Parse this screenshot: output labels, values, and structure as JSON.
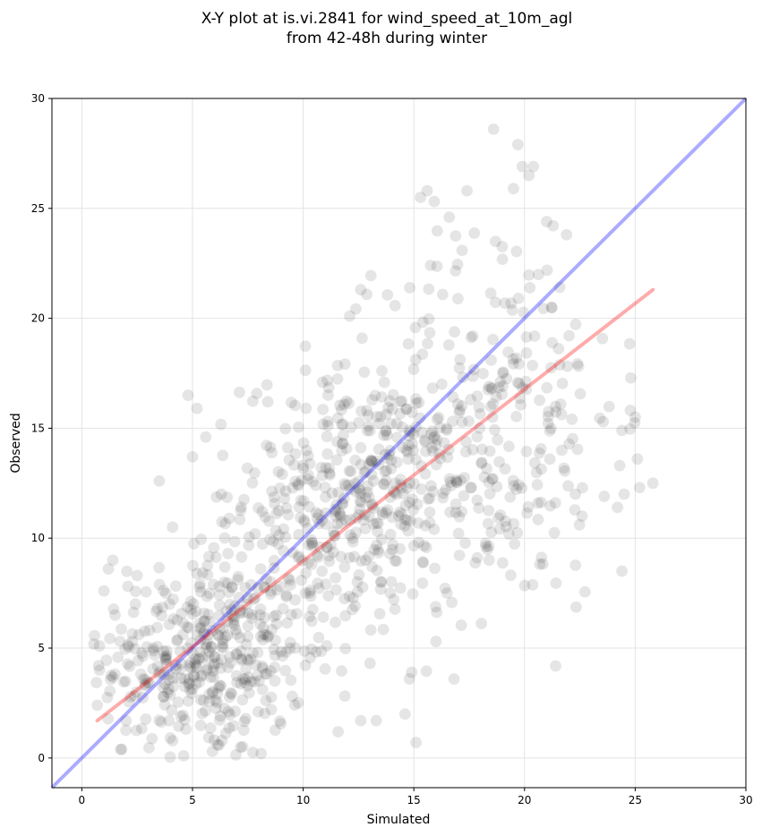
{
  "chart_data": {
    "type": "scatter",
    "title_line1": "X-Y plot at is.vi.2841 for wind_speed_at_10m_agl",
    "title_line2": "from 42-48h during winter",
    "xlabel": "Simulated",
    "ylabel": "Observed",
    "xlim": [
      -1.35,
      30
    ],
    "ylim": [
      -1.35,
      30
    ],
    "xticks": [
      "0",
      "5",
      "10",
      "15",
      "20",
      "25",
      "30"
    ],
    "yticks": [
      "0",
      "5",
      "10",
      "15",
      "20",
      "25",
      "30"
    ],
    "grid": true,
    "point_color": "#000000",
    "point_alpha": 0.1,
    "identity_line": {
      "color": "#0000ff",
      "from": [
        -1.35,
        -1.35
      ],
      "to": [
        30,
        30
      ]
    },
    "regression_line": {
      "color": "#ff0000",
      "from": [
        0.7,
        1.7
      ],
      "to": [
        25.8,
        21.3
      ]
    },
    "point_cloud": {
      "count": 1100,
      "clusters": [
        {
          "cx": 5.5,
          "cy": 4.5,
          "sx": 2.3,
          "sy": 2.3,
          "n": 380
        },
        {
          "cx": 13.0,
          "cy": 12.0,
          "sx": 2.8,
          "sy": 2.8,
          "n": 420
        },
        {
          "cx": 19.0,
          "cy": 16.0,
          "sx": 2.6,
          "sy": 4.5,
          "n": 220
        },
        {
          "cx": 9.0,
          "cy": 8.0,
          "sx": 2.5,
          "sy": 2.5,
          "n": 80
        }
      ]
    },
    "points": [
      [
        0.7,
        2.4
      ],
      [
        0.8,
        5.1
      ],
      [
        0.8,
        4.0
      ],
      [
        1.0,
        7.6
      ],
      [
        1.2,
        8.6
      ],
      [
        1.4,
        9.0
      ],
      [
        1.5,
        6.5
      ],
      [
        1.8,
        0.4
      ],
      [
        2.0,
        1.7
      ],
      [
        2.5,
        8.3
      ],
      [
        3.5,
        12.6
      ],
      [
        4.1,
        10.5
      ],
      [
        4.8,
        16.5
      ],
      [
        5.0,
        13.7
      ],
      [
        5.2,
        15.9
      ],
      [
        5.6,
        14.6
      ],
      [
        6.3,
        12.0
      ],
      [
        8.4,
        16.2
      ],
      [
        8.1,
        0.2
      ],
      [
        4.6,
        0.1
      ],
      [
        5.9,
        0.3
      ],
      [
        12.1,
        20.1
      ],
      [
        12.6,
        21.3
      ],
      [
        15.6,
        25.8
      ],
      [
        15.3,
        25.5
      ],
      [
        16.6,
        24.6
      ],
      [
        17.4,
        25.8
      ],
      [
        18.6,
        28.6
      ],
      [
        19.7,
        27.9
      ],
      [
        19.9,
        26.9
      ],
      [
        20.4,
        26.9
      ],
      [
        20.2,
        26.5
      ],
      [
        19.5,
        25.9
      ],
      [
        21.0,
        24.4
      ],
      [
        21.9,
        23.8
      ],
      [
        24.4,
        14.9
      ],
      [
        24.3,
        13.3
      ],
      [
        24.4,
        8.5
      ],
      [
        24.5,
        12.0
      ],
      [
        25.0,
        15.5
      ],
      [
        25.1,
        13.6
      ],
      [
        25.2,
        12.3
      ],
      [
        25.8,
        12.5
      ],
      [
        23.6,
        11.9
      ],
      [
        24.2,
        11.4
      ],
      [
        22.3,
        12.0
      ],
      [
        22.6,
        11.0
      ],
      [
        18.4,
        9.0
      ],
      [
        15.1,
        0.7
      ],
      [
        14.8,
        3.6
      ],
      [
        14.9,
        3.9
      ],
      [
        12.6,
        1.7
      ],
      [
        13.3,
        1.7
      ],
      [
        14.6,
        2.0
      ],
      [
        16.0,
        5.3
      ],
      [
        16.5,
        7.5
      ]
    ]
  }
}
